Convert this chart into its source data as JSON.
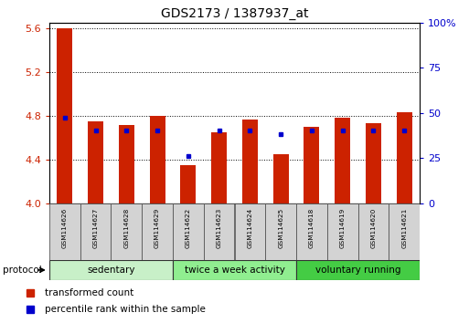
{
  "title": "GDS2173 / 1387937_at",
  "samples": [
    "GSM114626",
    "GSM114627",
    "GSM114628",
    "GSM114629",
    "GSM114622",
    "GSM114623",
    "GSM114624",
    "GSM114625",
    "GSM114618",
    "GSM114619",
    "GSM114620",
    "GSM114621"
  ],
  "red_values": [
    5.6,
    4.75,
    4.72,
    4.8,
    4.35,
    4.65,
    4.77,
    4.45,
    4.7,
    4.78,
    4.73,
    4.83
  ],
  "blue_values": [
    4.78,
    4.67,
    4.67,
    4.67,
    4.43,
    4.67,
    4.67,
    4.63,
    4.67,
    4.67,
    4.67,
    4.67
  ],
  "ylim_left": [
    4.0,
    5.65
  ],
  "ylim_right": [
    0,
    100
  ],
  "yticks_left": [
    4.0,
    4.4,
    4.8,
    5.2,
    5.6
  ],
  "yticks_right": [
    0,
    25,
    50,
    75,
    100
  ],
  "groups": [
    {
      "label": "sedentary",
      "start": 0,
      "end": 4,
      "color": "#c8f0c8"
    },
    {
      "label": "twice a week activity",
      "start": 4,
      "end": 8,
      "color": "#90ee90"
    },
    {
      "label": "voluntary running",
      "start": 8,
      "end": 12,
      "color": "#44cc44"
    }
  ],
  "protocol_label": "protocol",
  "legend_red": "transformed count",
  "legend_blue": "percentile rank within the sample",
  "bar_width": 0.5,
  "red_color": "#cc2200",
  "blue_color": "#0000cc",
  "bg_color": "#ffffff",
  "tick_color_left": "#cc2200",
  "tick_color_right": "#0000cc",
  "ybase": 4.0
}
